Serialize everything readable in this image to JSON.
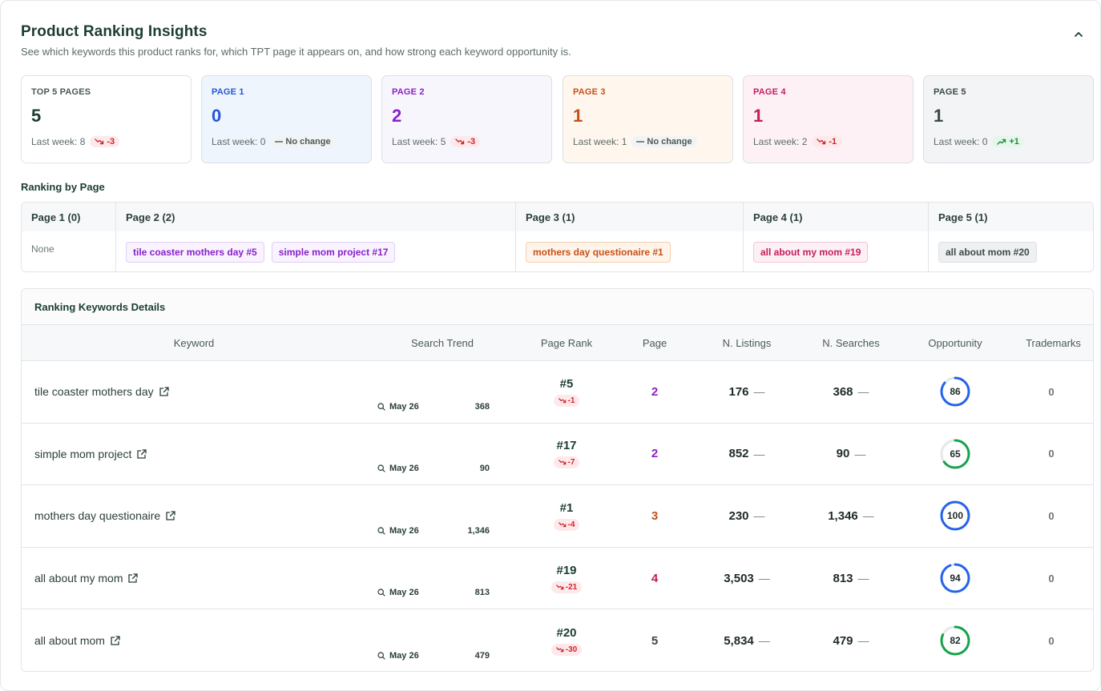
{
  "header": {
    "title": "Product Ranking Insights",
    "subtitle": "See which keywords this product ranks for, which TPT page it appears on, and how strong each keyword opportunity is."
  },
  "cards": [
    {
      "label": "TOP 5 PAGES",
      "value": "5",
      "last_week": "Last week: 8",
      "delta": "-3",
      "delta_type": "down",
      "color": "#1c3d34",
      "bg": "#ffffff"
    },
    {
      "label": "PAGE 1",
      "value": "0",
      "last_week": "Last week: 0",
      "delta": "No change",
      "delta_type": "flat",
      "color": "#2456d6",
      "bg": "#eff5fd"
    },
    {
      "label": "PAGE 2",
      "value": "2",
      "last_week": "Last week: 5",
      "delta": "-3",
      "delta_type": "down",
      "color": "#8a21c9",
      "bg": "#f8f6fd"
    },
    {
      "label": "PAGE 3",
      "value": "1",
      "last_week": "Last week: 1",
      "delta": "No change",
      "delta_type": "flat",
      "color": "#c4521a",
      "bg": "#fff7ee"
    },
    {
      "label": "PAGE 4",
      "value": "1",
      "last_week": "Last week: 2",
      "delta": "-1",
      "delta_type": "down",
      "color": "#c41d5b",
      "bg": "#fdf1f6"
    },
    {
      "label": "PAGE 5",
      "value": "1",
      "last_week": "Last week: 0",
      "delta": "+1",
      "delta_type": "up",
      "color": "#3b4a47",
      "bg": "#f3f4f6"
    }
  ],
  "ranking_by_page": {
    "title": "Ranking by Page",
    "columns": [
      {
        "label": "Page 1 (0)",
        "none_text": "None",
        "chips": []
      },
      {
        "label": "Page 2 (2)",
        "chips": [
          "tile coaster mothers day #5",
          "simple mom project #17"
        ]
      },
      {
        "label": "Page 3 (1)",
        "chips": [
          "mothers day questionaire #1"
        ]
      },
      {
        "label": "Page 4 (1)",
        "chips": [
          "all about my mom #19"
        ]
      },
      {
        "label": "Page 5 (1)",
        "chips": [
          "all about mom #20"
        ]
      }
    ]
  },
  "details": {
    "title": "Ranking Keywords Details",
    "headers": {
      "keyword": "Keyword",
      "trend": "Search Trend",
      "rank": "Page Rank",
      "page": "Page",
      "listings": "N. Listings",
      "searches": "N. Searches",
      "opportunity": "Opportunity",
      "trademarks": "Trademarks"
    },
    "rows": [
      {
        "keyword": "tile coaster mothers day",
        "trend_date": "May 26",
        "trend_value": "368",
        "rank": "#5",
        "rank_delta": "-1",
        "page": "2",
        "page_color": "#8a21c9",
        "listings": "176",
        "searches": "368",
        "opportunity": 86,
        "opp_color": "#2563eb",
        "trademarks": "0"
      },
      {
        "keyword": "simple mom project",
        "trend_date": "May 26",
        "trend_value": "90",
        "rank": "#17",
        "rank_delta": "-7",
        "page": "2",
        "page_color": "#8a21c9",
        "listings": "852",
        "searches": "90",
        "opportunity": 65,
        "opp_color": "#16a34a",
        "trademarks": "0"
      },
      {
        "keyword": "mothers day questionaire",
        "trend_date": "May 26",
        "trend_value": "1,346",
        "rank": "#1",
        "rank_delta": "-4",
        "page": "3",
        "page_color": "#c4521a",
        "listings": "230",
        "searches": "1,346",
        "opportunity": 100,
        "opp_color": "#2563eb",
        "trademarks": "0"
      },
      {
        "keyword": "all about my mom",
        "trend_date": "May 26",
        "trend_value": "813",
        "rank": "#19",
        "rank_delta": "-21",
        "page": "4",
        "page_color": "#c41d5b",
        "listings": "3,503",
        "searches": "813",
        "opportunity": 94,
        "opp_color": "#2563eb",
        "trademarks": "0"
      },
      {
        "keyword": "all about mom",
        "trend_date": "May 26",
        "trend_value": "479",
        "rank": "#20",
        "rank_delta": "-30",
        "page": "5",
        "page_color": "#3b4a47",
        "listings": "5,834",
        "searches": "479",
        "opportunity": 82,
        "opp_color": "#16a34a",
        "trademarks": "0"
      }
    ]
  }
}
